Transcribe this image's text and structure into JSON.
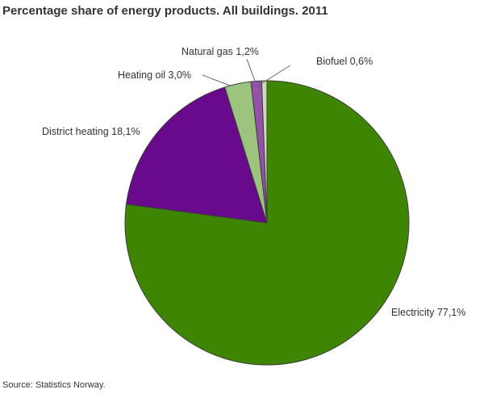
{
  "chart_data": {
    "type": "pie",
    "title": "Percentage share of energy products. All buildings. 2011",
    "unit": "%",
    "decimal_separator": ",",
    "direction": "clockwise",
    "start_angle_deg": 0,
    "legend": "none",
    "slice_stroke_color": "#3d3d3d",
    "leader_line_color": "#666666",
    "background_color": "#ffffff",
    "slices": [
      {
        "label": "Electricity",
        "value": 77.1,
        "display": "Electricity 77,1%",
        "color": "#3e8504"
      },
      {
        "label": "District heating",
        "value": 18.1,
        "display": "District heating 18,1%",
        "color": "#69098c"
      },
      {
        "label": "Heating oil",
        "value": 3.0,
        "display": "Heating oil 3,0%",
        "color": "#9cc47e"
      },
      {
        "label": "Natural gas",
        "value": 1.2,
        "display": "Natural gas 1,2%",
        "color": "#9351a8"
      },
      {
        "label": "Biofuel",
        "value": 0.6,
        "display": "Biofuel 0,6%",
        "color": "#cbdcb4"
      }
    ]
  },
  "source_note": "Source: Statistics Norway."
}
